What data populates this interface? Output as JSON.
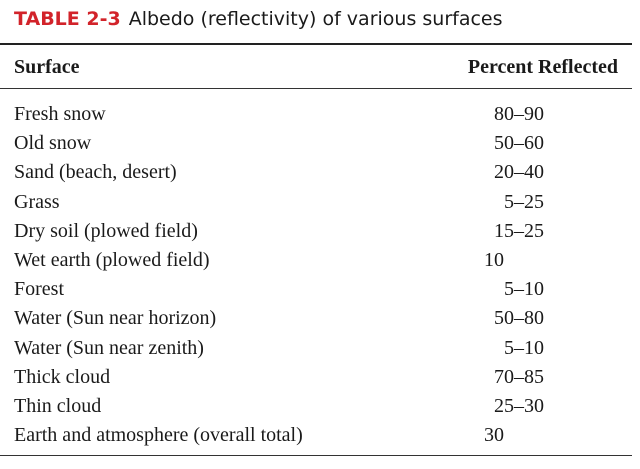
{
  "header": {
    "label": "TABLE 2-3",
    "title": "Albedo (reflectivity) of various surfaces"
  },
  "table": {
    "columns": [
      "Surface",
      "Percent Reflected"
    ],
    "rows": [
      [
        "Fresh snow",
        "80–90"
      ],
      [
        "Old snow",
        "50–60"
      ],
      [
        "Sand (beach, desert)",
        "20–40"
      ],
      [
        "Grass",
        "5–25"
      ],
      [
        "Dry soil (plowed field)",
        "15–25"
      ],
      [
        "Wet earth (plowed field)",
        "10"
      ],
      [
        "Forest",
        "5–10"
      ],
      [
        "Water (Sun near horizon)",
        "50–80"
      ],
      [
        "Water (Sun near zenith)",
        "5–10"
      ],
      [
        "Thick cloud",
        "70–85"
      ],
      [
        "Thin cloud",
        "25–30"
      ],
      [
        "Earth and atmosphere (overall total)",
        "30"
      ]
    ]
  }
}
